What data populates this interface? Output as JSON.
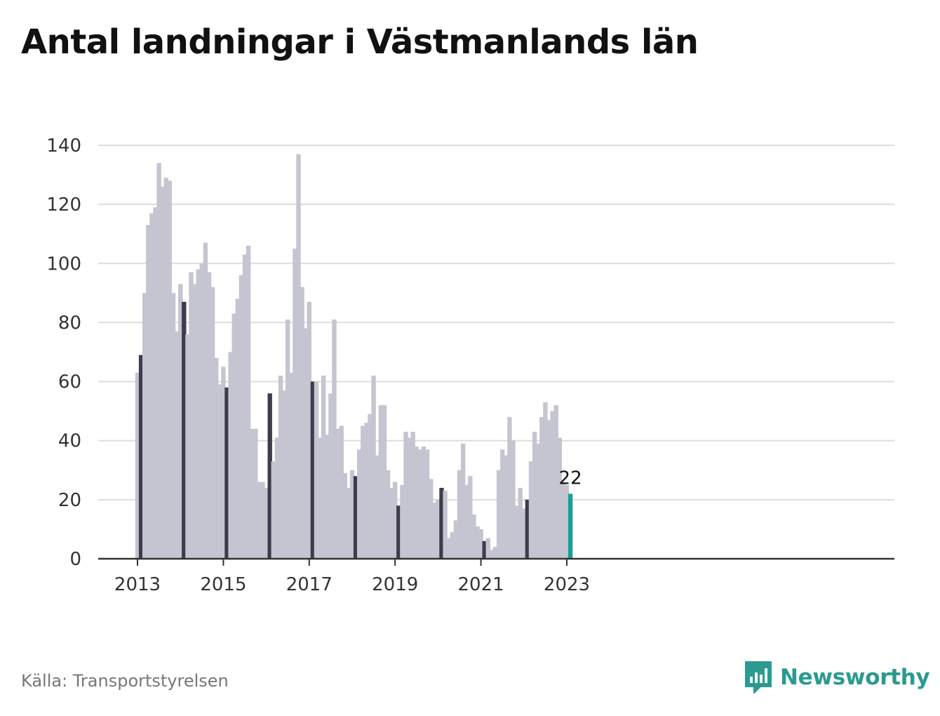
{
  "title": "Antal landningar i Västmanlands län",
  "source": "Källa: Transportstyrelsen",
  "brand": {
    "name": "Newsworthy",
    "icon": "newsworthy-logo-icon"
  },
  "colors": {
    "bar_default": "#c5c4d1",
    "bar_january": "#3d3c4c",
    "bar_latest": "#1a9e95",
    "grid": "#dddddd",
    "axis": "#333333",
    "brand": "#2b9a90"
  },
  "chart_data": {
    "type": "bar",
    "start": "2013-01",
    "period": "monthly",
    "values": [
      63,
      69,
      90,
      113,
      117,
      119,
      134,
      126,
      129,
      128,
      90,
      77,
      93,
      87,
      76,
      97,
      93,
      98,
      100,
      107,
      97,
      92,
      68,
      59,
      65,
      58,
      70,
      83,
      88,
      96,
      103,
      106,
      44,
      44,
      26,
      26,
      24,
      56,
      33,
      41,
      62,
      57,
      81,
      63,
      105,
      137,
      92,
      78,
      87,
      60,
      60,
      41,
      62,
      42,
      56,
      81,
      44,
      45,
      29,
      24,
      30,
      28,
      37,
      45,
      46,
      49,
      62,
      35,
      52,
      52,
      30,
      24,
      26,
      18,
      25,
      43,
      41,
      43,
      38,
      37,
      38,
      37,
      27,
      19,
      20,
      24,
      23,
      7,
      9,
      13,
      30,
      39,
      25,
      28,
      15,
      11,
      10,
      6,
      7,
      3,
      4,
      30,
      37,
      35,
      48,
      40,
      18,
      24,
      17,
      20,
      33,
      43,
      39,
      48,
      53,
      47,
      50,
      52,
      41,
      26,
      25,
      22
    ],
    "highlighted_month": "February",
    "x_tick_labels": [
      "2013",
      "2015",
      "2017",
      "2019",
      "2021",
      "2023"
    ],
    "y_ticks": [
      0,
      20,
      40,
      60,
      80,
      100,
      120,
      140
    ],
    "ylim": [
      0,
      140
    ],
    "last_value_label": "22",
    "grid": true,
    "legend": "none"
  }
}
